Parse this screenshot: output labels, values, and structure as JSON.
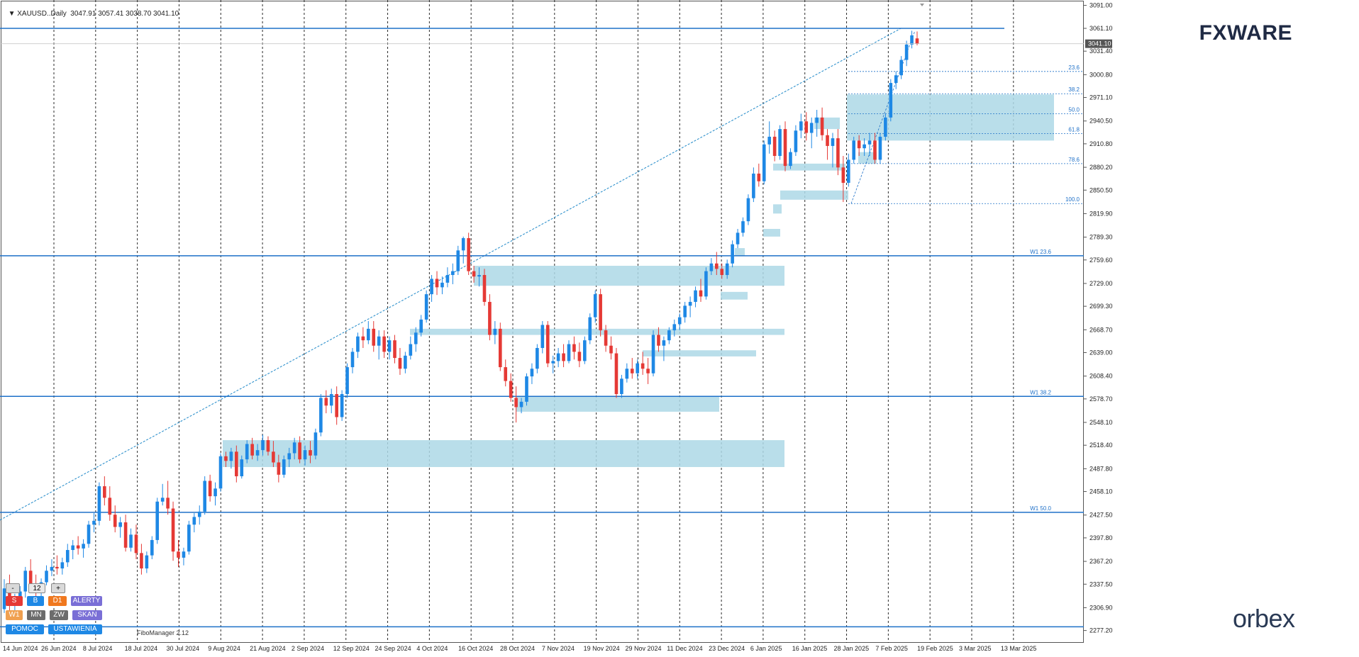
{
  "header": {
    "symbol": "XAUUSD..Daily",
    "ohlc": "3047.91 3057.41 3038.70 3041.10"
  },
  "brand": {
    "fxware": "FXWARE",
    "orbex": "orbex"
  },
  "controls": {
    "minus": "-",
    "value": "12",
    "plus": "+",
    "s": "S",
    "b": "B",
    "d1": "D1",
    "alerty": "ALERTY",
    "w1": "W1",
    "mn": "MN",
    "zw": "ZW",
    "skan": "SKAN",
    "pomoc": "POMOC",
    "ustawienia": "USTAWIENIA"
  },
  "fibo_manager": "FiboManager 2.12",
  "colors": {
    "bull": "#1e88e5",
    "bear": "#e53935",
    "zone": "#add8e6",
    "hline": "#1e70c8",
    "grid": "#2a2a2a",
    "bg": "#ffffff",
    "price_tag": "#555555"
  },
  "chart_data": {
    "type": "candlestick",
    "symbol": "XAUUSD",
    "timeframe": "Daily",
    "ylim": [
      2261.16,
      3098.0
    ],
    "price_ticks": [
      "3091.00",
      "3061.10",
      "3031.40",
      "3000.80",
      "2971.10",
      "2940.50",
      "2910.80",
      "2880.20",
      "2850.50",
      "2819.90",
      "2789.30",
      "2759.60",
      "2729.00",
      "2699.30",
      "2668.70",
      "2639.00",
      "2608.40",
      "2578.70",
      "2548.10",
      "2518.40",
      "2487.80",
      "2458.10",
      "2427.50",
      "2397.80",
      "2367.20",
      "2337.50",
      "2306.90",
      "2277.20"
    ],
    "date_ticks": [
      "14 Jun 2024",
      "26 Jun 2024",
      "8 Jul 2024",
      "18 Jul 2024",
      "30 Jul 2024",
      "9 Aug 2024",
      "21 Aug 2024",
      "2 Sep 2024",
      "12 Sep 2024",
      "24 Sep 2024",
      "4 Oct 2024",
      "16 Oct 2024",
      "28 Oct 2024",
      "7 Nov 2024",
      "19 Nov 2024",
      "29 Nov 2024",
      "11 Dec 2024",
      "23 Dec 2024",
      "6 Jan 2025",
      "16 Jan 2025",
      "28 Jan 2025",
      "7 Feb 2025",
      "19 Feb 2025",
      "3 Mar 2025",
      "13 Mar 2025"
    ],
    "current_price": "3041.10",
    "candles": [
      [
        2305,
        2344,
        2300,
        2332
      ],
      [
        2332,
        2350,
        2298,
        2310
      ],
      [
        2310,
        2325,
        2300,
        2318
      ],
      [
        2318,
        2335,
        2310,
        2328
      ],
      [
        2328,
        2360,
        2320,
        2355
      ],
      [
        2355,
        2370,
        2330,
        2338
      ],
      [
        2338,
        2350,
        2320,
        2330
      ],
      [
        2330,
        2345,
        2322,
        2340
      ],
      [
        2340,
        2362,
        2336,
        2355
      ],
      [
        2355,
        2370,
        2348,
        2360
      ],
      [
        2360,
        2375,
        2350,
        2358
      ],
      [
        2358,
        2372,
        2350,
        2366
      ],
      [
        2366,
        2390,
        2360,
        2382
      ],
      [
        2382,
        2395,
        2370,
        2388
      ],
      [
        2388,
        2400,
        2376,
        2384
      ],
      [
        2384,
        2396,
        2372,
        2390
      ],
      [
        2390,
        2420,
        2385,
        2415
      ],
      [
        2415,
        2430,
        2405,
        2420
      ],
      [
        2420,
        2470,
        2414,
        2465
      ],
      [
        2465,
        2478,
        2440,
        2450
      ],
      [
        2450,
        2465,
        2420,
        2428
      ],
      [
        2428,
        2440,
        2405,
        2412
      ],
      [
        2412,
        2425,
        2398,
        2418
      ],
      [
        2418,
        2428,
        2380,
        2385
      ],
      [
        2385,
        2410,
        2380,
        2402
      ],
      [
        2402,
        2415,
        2370,
        2378
      ],
      [
        2378,
        2390,
        2350,
        2358
      ],
      [
        2358,
        2380,
        2352,
        2375
      ],
      [
        2375,
        2400,
        2370,
        2395
      ],
      [
        2395,
        2450,
        2390,
        2445
      ],
      [
        2445,
        2468,
        2440,
        2450
      ],
      [
        2450,
        2472,
        2428,
        2436
      ],
      [
        2436,
        2445,
        2368,
        2380
      ],
      [
        2380,
        2395,
        2360,
        2372
      ],
      [
        2372,
        2385,
        2362,
        2380
      ],
      [
        2380,
        2420,
        2376,
        2415
      ],
      [
        2415,
        2430,
        2405,
        2425
      ],
      [
        2425,
        2440,
        2415,
        2432
      ],
      [
        2432,
        2478,
        2428,
        2472
      ],
      [
        2472,
        2480,
        2445,
        2452
      ],
      [
        2452,
        2470,
        2440,
        2462
      ],
      [
        2462,
        2508,
        2458,
        2504
      ],
      [
        2504,
        2510,
        2490,
        2498
      ],
      [
        2498,
        2515,
        2488,
        2510
      ],
      [
        2510,
        2518,
        2470,
        2478
      ],
      [
        2478,
        2505,
        2475,
        2500
      ],
      [
        2500,
        2525,
        2495,
        2520
      ],
      [
        2520,
        2528,
        2500,
        2505
      ],
      [
        2505,
        2520,
        2498,
        2512
      ],
      [
        2512,
        2532,
        2505,
        2525
      ],
      [
        2525,
        2530,
        2505,
        2510
      ],
      [
        2510,
        2524,
        2490,
        2496
      ],
      [
        2496,
        2506,
        2470,
        2480
      ],
      [
        2480,
        2505,
        2476,
        2500
      ],
      [
        2500,
        2515,
        2490,
        2508
      ],
      [
        2508,
        2528,
        2500,
        2522
      ],
      [
        2522,
        2530,
        2495,
        2500
      ],
      [
        2500,
        2518,
        2492,
        2512
      ],
      [
        2512,
        2524,
        2495,
        2505
      ],
      [
        2505,
        2540,
        2500,
        2535
      ],
      [
        2535,
        2585,
        2530,
        2580
      ],
      [
        2580,
        2590,
        2560,
        2570
      ],
      [
        2570,
        2592,
        2560,
        2585
      ],
      [
        2585,
        2595,
        2545,
        2555
      ],
      [
        2555,
        2590,
        2550,
        2585
      ],
      [
        2585,
        2625,
        2580,
        2620
      ],
      [
        2620,
        2645,
        2612,
        2640
      ],
      [
        2640,
        2665,
        2632,
        2660
      ],
      [
        2660,
        2672,
        2645,
        2655
      ],
      [
        2655,
        2680,
        2650,
        2670
      ],
      [
        2670,
        2680,
        2640,
        2648
      ],
      [
        2648,
        2668,
        2630,
        2660
      ],
      [
        2660,
        2668,
        2632,
        2640
      ],
      [
        2640,
        2660,
        2630,
        2655
      ],
      [
        2655,
        2662,
        2625,
        2632
      ],
      [
        2632,
        2645,
        2610,
        2618
      ],
      [
        2618,
        2640,
        2612,
        2635
      ],
      [
        2635,
        2660,
        2630,
        2650
      ],
      [
        2650,
        2672,
        2640,
        2665
      ],
      [
        2665,
        2688,
        2660,
        2682
      ],
      [
        2682,
        2720,
        2678,
        2715
      ],
      [
        2715,
        2740,
        2705,
        2735
      ],
      [
        2735,
        2745,
        2714,
        2724
      ],
      [
        2724,
        2738,
        2715,
        2730
      ],
      [
        2730,
        2750,
        2724,
        2740
      ],
      [
        2740,
        2755,
        2728,
        2745
      ],
      [
        2745,
        2778,
        2740,
        2772
      ],
      [
        2772,
        2790,
        2755,
        2788
      ],
      [
        2788,
        2795,
        2740,
        2745
      ],
      [
        2745,
        2752,
        2730,
        2738
      ],
      [
        2738,
        2750,
        2725,
        2740
      ],
      [
        2740,
        2748,
        2700,
        2705
      ],
      [
        2705,
        2715,
        2655,
        2662
      ],
      [
        2662,
        2680,
        2650,
        2670
      ],
      [
        2670,
        2678,
        2615,
        2620
      ],
      [
        2620,
        2630,
        2595,
        2602
      ],
      [
        2602,
        2612,
        2575,
        2580
      ],
      [
        2580,
        2595,
        2548,
        2568
      ],
      [
        2568,
        2580,
        2560,
        2575
      ],
      [
        2575,
        2612,
        2570,
        2608
      ],
      [
        2608,
        2625,
        2598,
        2618
      ],
      [
        2618,
        2650,
        2612,
        2645
      ],
      [
        2645,
        2680,
        2638,
        2675
      ],
      [
        2675,
        2680,
        2620,
        2625
      ],
      [
        2625,
        2635,
        2612,
        2628
      ],
      [
        2628,
        2645,
        2620,
        2638
      ],
      [
        2638,
        2650,
        2620,
        2628
      ],
      [
        2628,
        2655,
        2625,
        2650
      ],
      [
        2650,
        2660,
        2630,
        2640
      ],
      [
        2640,
        2652,
        2620,
        2628
      ],
      [
        2628,
        2660,
        2624,
        2655
      ],
      [
        2655,
        2690,
        2650,
        2685
      ],
      [
        2685,
        2720,
        2678,
        2715
      ],
      [
        2715,
        2722,
        2660,
        2668
      ],
      [
        2668,
        2675,
        2640,
        2648
      ],
      [
        2648,
        2660,
        2630,
        2638
      ],
      [
        2638,
        2645,
        2580,
        2585
      ],
      [
        2585,
        2610,
        2580,
        2605
      ],
      [
        2605,
        2625,
        2600,
        2618
      ],
      [
        2618,
        2632,
        2605,
        2612
      ],
      [
        2612,
        2630,
        2605,
        2625
      ],
      [
        2625,
        2640,
        2610,
        2618
      ],
      [
        2618,
        2632,
        2598,
        2612
      ],
      [
        2612,
        2668,
        2608,
        2662
      ],
      [
        2662,
        2672,
        2640,
        2648
      ],
      [
        2648,
        2660,
        2628,
        2655
      ],
      [
        2655,
        2672,
        2650,
        2668
      ],
      [
        2668,
        2682,
        2660,
        2676
      ],
      [
        2676,
        2690,
        2668,
        2685
      ],
      [
        2685,
        2705,
        2678,
        2700
      ],
      [
        2700,
        2712,
        2685,
        2705
      ],
      [
        2705,
        2725,
        2698,
        2720
      ],
      [
        2720,
        2735,
        2705,
        2712
      ],
      [
        2712,
        2750,
        2708,
        2745
      ],
      [
        2745,
        2762,
        2740,
        2755
      ],
      [
        2755,
        2770,
        2740,
        2748
      ],
      [
        2748,
        2755,
        2735,
        2740
      ],
      [
        2740,
        2760,
        2735,
        2755
      ],
      [
        2755,
        2785,
        2750,
        2780
      ],
      [
        2780,
        2800,
        2775,
        2795
      ],
      [
        2795,
        2815,
        2790,
        2810
      ],
      [
        2810,
        2845,
        2805,
        2840
      ],
      [
        2840,
        2880,
        2835,
        2872
      ],
      [
        2872,
        2885,
        2855,
        2862
      ],
      [
        2862,
        2915,
        2858,
        2910
      ],
      [
        2910,
        2940,
        2898,
        2920
      ],
      [
        2920,
        2928,
        2888,
        2895
      ],
      [
        2895,
        2935,
        2890,
        2930
      ],
      [
        2930,
        2940,
        2875,
        2882
      ],
      [
        2882,
        2905,
        2878,
        2900
      ],
      [
        2900,
        2935,
        2895,
        2928
      ],
      [
        2928,
        2950,
        2918,
        2940
      ],
      [
        2940,
        2952,
        2915,
        2925
      ],
      [
        2925,
        2945,
        2905,
        2938
      ],
      [
        2938,
        2955,
        2920,
        2945
      ],
      [
        2945,
        2958,
        2915,
        2922
      ],
      [
        2922,
        2930,
        2890,
        2908
      ],
      [
        2908,
        2925,
        2880,
        2918
      ],
      [
        2918,
        2930,
        2870,
        2880
      ],
      [
        2880,
        2895,
        2835,
        2860
      ],
      [
        2860,
        2898,
        2855,
        2890
      ],
      [
        2890,
        2920,
        2885,
        2915
      ],
      [
        2915,
        2922,
        2895,
        2905
      ],
      [
        2905,
        2918,
        2895,
        2910
      ],
      [
        2910,
        2925,
        2895,
        2915
      ],
      [
        2915,
        2925,
        2885,
        2890
      ],
      [
        2890,
        2925,
        2885,
        2920
      ],
      [
        2920,
        2950,
        2915,
        2945
      ],
      [
        2945,
        2995,
        2940,
        2990
      ],
      [
        2990,
        3005,
        2982,
        3000
      ],
      [
        3000,
        3025,
        2995,
        3020
      ],
      [
        3020,
        3045,
        3012,
        3040
      ],
      [
        3040,
        3058,
        3035,
        3052
      ],
      [
        3048,
        3057,
        3039,
        3041
      ]
    ],
    "zones": [
      {
        "x0": 1194,
        "x1": 1486,
        "top": 2975,
        "bottom": 2915
      },
      {
        "x0": 1210,
        "x1": 1236,
        "top": 2900,
        "bottom": 2885
      },
      {
        "x0": 1090,
        "x1": 1192,
        "top": 2885,
        "bottom": 2876
      },
      {
        "x0": 1100,
        "x1": 1196,
        "top": 2850,
        "bottom": 2838
      },
      {
        "x0": 1090,
        "x1": 1102,
        "top": 2832,
        "bottom": 2820
      },
      {
        "x0": 1076,
        "x1": 1100,
        "top": 2800,
        "bottom": 2790
      },
      {
        "x0": 1036,
        "x1": 1050,
        "top": 2775,
        "bottom": 2765
      },
      {
        "x0": 1148,
        "x1": 1184,
        "top": 2945,
        "bottom": 2930
      },
      {
        "x0": 668,
        "x1": 1106,
        "top": 2752,
        "bottom": 2726
      },
      {
        "x0": 1016,
        "x1": 1054,
        "top": 2718,
        "bottom": 2708
      },
      {
        "x0": 578,
        "x1": 1106,
        "top": 2670,
        "bottom": 2662
      },
      {
        "x0": 906,
        "x1": 1066,
        "top": 2642,
        "bottom": 2634
      },
      {
        "x0": 728,
        "x1": 1014,
        "top": 2582,
        "bottom": 2562
      },
      {
        "x0": 314,
        "x1": 1106,
        "top": 2525,
        "bottom": 2490
      }
    ],
    "horizontal_lines": [
      {
        "price": 3061.1,
        "label": ""
      },
      {
        "price": 2765.0,
        "label": "W1 23.6"
      },
      {
        "price": 2582.0,
        "label": "W1 38.2"
      },
      {
        "price": 2431.0,
        "label": "W1 50.0"
      },
      {
        "price": 2282.0,
        "label": ""
      }
    ],
    "fib_levels": [
      {
        "label": "23.6",
        "price": 3005
      },
      {
        "label": "38.2",
        "price": 2976
      },
      {
        "label": "50.0",
        "price": 2950
      },
      {
        "label": "61.8",
        "price": 2924
      },
      {
        "label": "78.6",
        "price": 2885
      },
      {
        "label": "100.0",
        "price": 2833
      }
    ],
    "trendline": {
      "from": [
        0,
        2421
      ],
      "to": [
        1272,
        3062
      ]
    }
  }
}
